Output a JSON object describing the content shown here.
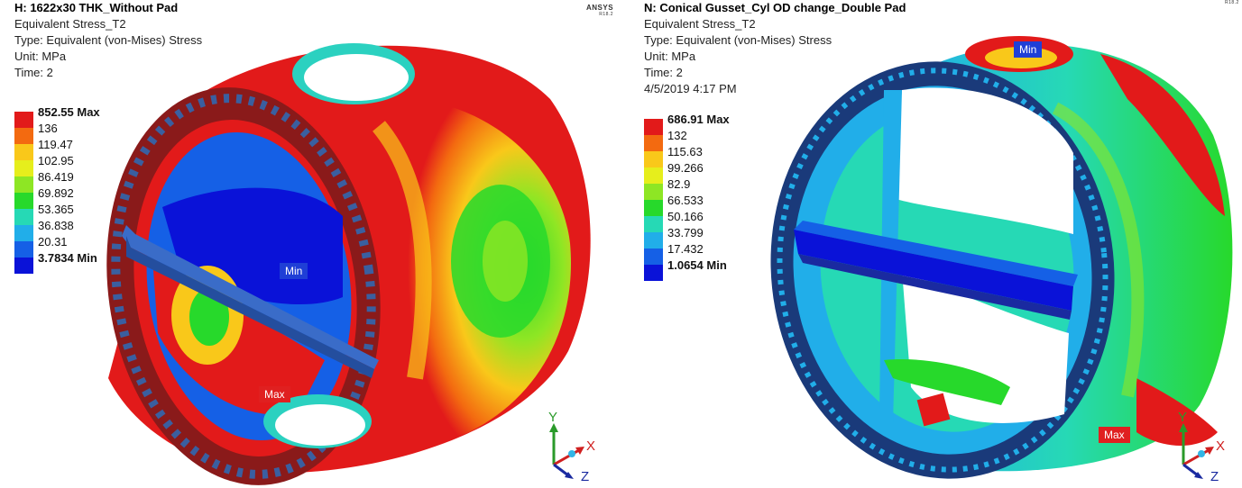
{
  "left": {
    "title": "H: 1622x30 THK_Without Pad",
    "result_name": "Equivalent Stress_T2",
    "type_line": "Type: Equivalent (von-Mises) Stress",
    "unit_line": "Unit: MPa",
    "time_line": "Time: 2",
    "brand": "ANSYS",
    "brand_version": "R18.2",
    "legend": [
      {
        "label": "852.55 Max",
        "color": "#e21a1a",
        "bold": true
      },
      {
        "label": "136",
        "color": "#f36a10",
        "bold": false
      },
      {
        "label": "119.47",
        "color": "#f9c81a",
        "bold": false
      },
      {
        "label": "102.95",
        "color": "#e6ee1c",
        "bold": false
      },
      {
        "label": "86.419",
        "color": "#8ee624",
        "bold": false
      },
      {
        "label": "69.892",
        "color": "#27d92b",
        "bold": false
      },
      {
        "label": "53.365",
        "color": "#26d9b5",
        "bold": false
      },
      {
        "label": "36.838",
        "color": "#21aee9",
        "bold": false
      },
      {
        "label": "20.31",
        "color": "#1560e6",
        "bold": false
      },
      {
        "label": "3.7834 Min",
        "color": "#0a12d8",
        "bold": true
      }
    ],
    "min_tag": "Min",
    "max_tag": "Max",
    "axes": {
      "y": "Y",
      "x": "X",
      "z": "Z"
    }
  },
  "right": {
    "title": "N: Conical Gusset_Cyl OD change_Double Pad",
    "result_name": "Equivalent Stress_T2",
    "type_line": "Type: Equivalent (von-Mises) Stress",
    "unit_line": "Unit: MPa",
    "time_line": "Time: 2",
    "date_line": "4/5/2019 4:17 PM",
    "brand_version": "R18.2",
    "legend": [
      {
        "label": "686.91 Max",
        "color": "#e21a1a",
        "bold": true
      },
      {
        "label": "132",
        "color": "#f36a10",
        "bold": false
      },
      {
        "label": "115.63",
        "color": "#f9c81a",
        "bold": false
      },
      {
        "label": "99.266",
        "color": "#e6ee1c",
        "bold": false
      },
      {
        "label": "82.9",
        "color": "#8ee624",
        "bold": false
      },
      {
        "label": "66.533",
        "color": "#27d92b",
        "bold": false
      },
      {
        "label": "50.166",
        "color": "#26d9b5",
        "bold": false
      },
      {
        "label": "33.799",
        "color": "#21aee9",
        "bold": false
      },
      {
        "label": "17.432",
        "color": "#1560e6",
        "bold": false
      },
      {
        "label": "1.0654 Min",
        "color": "#0a12d8",
        "bold": true
      }
    ],
    "min_tag": "Min",
    "max_tag": "Max",
    "axes": {
      "y": "Y",
      "x": "X",
      "z": "Z"
    }
  }
}
